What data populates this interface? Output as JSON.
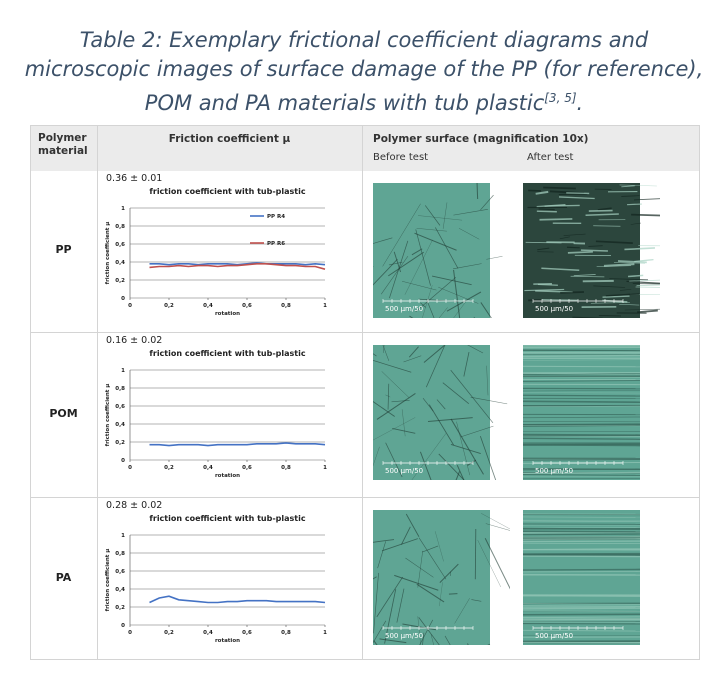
{
  "title_lines": [
    "Table 2: Exemplary frictional coefficient diagrams and",
    "microscopic images of surface damage of the PP (for reference),",
    "POM and PA materials with tub plastic"
  ],
  "title_citation": "[3, 5]",
  "title_end": ".",
  "table": {
    "headers": [
      "Polymer material",
      "Friction coefficient µ",
      "Polymer surface (magnification 10x)"
    ],
    "subheaders": [
      "Before test",
      "After test"
    ],
    "rows": [
      {
        "material": "PP",
        "friction": "0.36 ± 0.01",
        "scale_labels": [
          "500 µm/50",
          "500 µm/50"
        ],
        "chart": {
          "type": "line",
          "title": "friction coefficient with tub-plastic",
          "x_label": "rotation",
          "y_label": "friction coefficient µ",
          "x": [
            0.1,
            0.15,
            0.2,
            0.25,
            0.3,
            0.35,
            0.4,
            0.45,
            0.5,
            0.55,
            0.6,
            0.65,
            0.7,
            0.75,
            0.8,
            0.85,
            0.9,
            0.95,
            1
          ],
          "series": [
            {
              "name": "PP R4",
              "color": "#4472c4",
              "values": [
                0.38,
                0.38,
                0.37,
                0.38,
                0.38,
                0.37,
                0.38,
                0.38,
                0.38,
                0.37,
                0.38,
                0.39,
                0.38,
                0.38,
                0.38,
                0.38,
                0.37,
                0.38,
                0.37
              ]
            },
            {
              "name": "PP R6",
              "color": "#c0504d",
              "values": [
                0.34,
                0.35,
                0.35,
                0.36,
                0.35,
                0.36,
                0.36,
                0.35,
                0.36,
                0.36,
                0.37,
                0.38,
                0.38,
                0.37,
                0.36,
                0.36,
                0.35,
                0.35,
                0.32
              ]
            }
          ],
          "xlim": [
            0,
            1
          ],
          "ylim": [
            0,
            1
          ],
          "xticks": [
            0,
            {
              "value": 0.2,
              "label": "0,2"
            },
            {
              "value": 0.4,
              "label": "0,4"
            },
            {
              "value": 0.6,
              "label": "0,6"
            },
            {
              "value": 0.8,
              "label": "0,8"
            },
            1
          ],
          "yticks": [
            0,
            {
              "value": 0.2,
              "label": "0,2"
            },
            {
              "value": 0.4,
              "label": "0,4"
            },
            {
              "value": 0.6,
              "label": "0,6"
            },
            {
              "value": 0.8,
              "label": "0,8"
            },
            1
          ],
          "grid": true,
          "legend": "right"
        }
      },
      {
        "material": "POM",
        "friction": "0.16 ± 0.02",
        "scale_labels": [
          "500 µm/50",
          "500 µm/50"
        ],
        "chart": {
          "type": "line",
          "title": "friction coefficient with tub-plastic",
          "x_label": "rotation",
          "y_label": "friction coefficient µ",
          "x": [
            0.1,
            0.15,
            0.2,
            0.25,
            0.3,
            0.35,
            0.4,
            0.45,
            0.5,
            0.55,
            0.6,
            0.65,
            0.7,
            0.75,
            0.8,
            0.85,
            0.9,
            0.95,
            1
          ],
          "series": [
            {
              "color": "#4472c4",
              "values": [
                0.17,
                0.17,
                0.16,
                0.17,
                0.17,
                0.17,
                0.16,
                0.17,
                0.17,
                0.17,
                0.17,
                0.18,
                0.18,
                0.18,
                0.19,
                0.18,
                0.18,
                0.18,
                0.17
              ]
            }
          ],
          "xlim": [
            0,
            1
          ],
          "ylim": [
            0,
            1
          ],
          "xticks": [
            0,
            {
              "value": 0.2,
              "label": "0,2"
            },
            {
              "value": 0.4,
              "label": "0,4"
            },
            {
              "value": 0.6,
              "label": "0,6"
            },
            {
              "value": 0.8,
              "label": "0,8"
            },
            1
          ],
          "yticks": [
            0,
            {
              "value": 0.2,
              "label": "0,2"
            },
            {
              "value": 0.4,
              "label": "0,4"
            },
            {
              "value": 0.6,
              "label": "0,6"
            },
            {
              "value": 0.8,
              "label": "0,8"
            },
            1
          ],
          "grid": true
        }
      },
      {
        "material": "PA",
        "friction": "0.28 ± 0.02",
        "scale_labels": [
          "500 µm/50",
          "500 µm/50"
        ],
        "chart": {
          "type": "line",
          "title": "friction coefficient with tub-plastic",
          "x_label": "rotation",
          "y_label": "friction coefficient µ",
          "x": [
            0.1,
            0.15,
            0.2,
            0.25,
            0.3,
            0.35,
            0.4,
            0.45,
            0.5,
            0.55,
            0.6,
            0.65,
            0.7,
            0.75,
            0.8,
            0.85,
            0.9,
            0.95,
            1
          ],
          "series": [
            {
              "color": "#4472c4",
              "values": [
                0.25,
                0.3,
                0.32,
                0.28,
                0.27,
                0.26,
                0.25,
                0.25,
                0.26,
                0.26,
                0.27,
                0.27,
                0.27,
                0.26,
                0.26,
                0.26,
                0.26,
                0.26,
                0.25
              ]
            }
          ],
          "xlim": [
            0,
            1
          ],
          "ylim": [
            0,
            1
          ],
          "xticks": [
            0,
            {
              "value": 0.2,
              "label": "0,2"
            },
            {
              "value": 0.4,
              "label": "0,4"
            },
            {
              "value": 0.6,
              "label": "0,6"
            },
            {
              "value": 0.8,
              "label": "0,8"
            },
            1
          ],
          "yticks": [
            0,
            {
              "value": 0.2,
              "label": "0,2"
            },
            {
              "value": 0.4,
              "label": "0,4"
            },
            {
              "value": 0.6,
              "label": "0,6"
            },
            {
              "value": 0.8,
              "label": "0,8"
            },
            1
          ],
          "grid": true
        }
      }
    ]
  }
}
